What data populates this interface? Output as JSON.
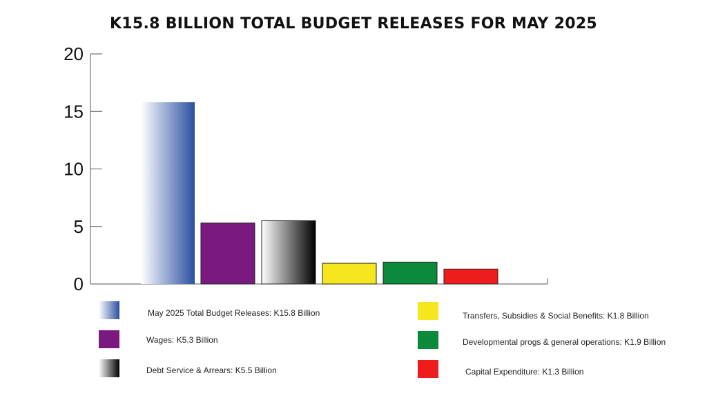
{
  "chart_data": {
    "type": "bar",
    "title": "K15.8 BILLION TOTAL BUDGET RELEASES FOR MAY 2025",
    "xlabel": "",
    "ylabel": "",
    "ylim": [
      0,
      20
    ],
    "yticks": [
      "0",
      "5",
      "10",
      "15",
      "20"
    ],
    "grid": false,
    "legend_placement": "bottom",
    "categories": [
      "May 2025 Total Budget Releases: K15.8 Billion",
      "Wages: K5.3 Billion",
      "Debt Service & Arrears: K5.5 Billion",
      "Transfers, Subsidies & Social Benefits: K1.8 Billion",
      "Developmental progs & general operations: K1.9 Billion",
      "Capital Expenditure: K1.3 Billion"
    ],
    "values": [
      15.8,
      5.3,
      5.5,
      1.8,
      1.9,
      1.3
    ],
    "colors": [
      "#2a4fa0",
      "#7a1a80",
      "#000000",
      "#f5e61e",
      "#0a8a3a",
      "#ee1c1c"
    ],
    "fills": [
      "gradient-blue",
      "solid",
      "gradient-black",
      "solid",
      "solid",
      "solid"
    ]
  }
}
